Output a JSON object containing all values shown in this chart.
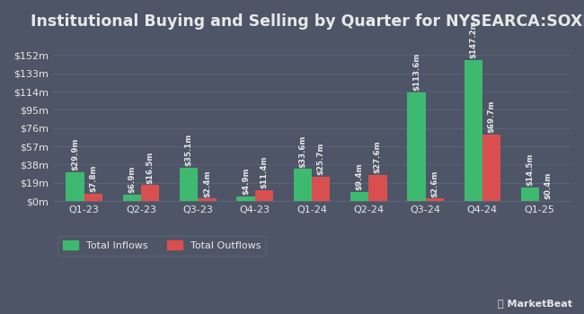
{
  "title": "Institutional Buying and Selling by Quarter for NYSEARCA:SOXL",
  "quarters": [
    "Q1-23",
    "Q2-23",
    "Q3-23",
    "Q4-23",
    "Q1-24",
    "Q2-24",
    "Q3-24",
    "Q4-24",
    "Q1-25"
  ],
  "inflows": [
    29.9,
    6.9,
    35.1,
    4.9,
    33.6,
    9.4,
    113.6,
    147.2,
    14.5
  ],
  "outflows": [
    7.8,
    16.5,
    2.4,
    11.4,
    25.7,
    27.6,
    2.6,
    69.7,
    0.4
  ],
  "inflow_labels": [
    "$29.9m",
    "$6.9m",
    "$35.1m",
    "$4.9m",
    "$33.6m",
    "$9.4m",
    "$113.6m",
    "$147.2m",
    "$14.5m"
  ],
  "outflow_labels": [
    "$7.8m",
    "$16.5m",
    "$2.4m",
    "$11.4m",
    "$25.7m",
    "$27.6m",
    "$2.6m",
    "$69.7m",
    "$0.4m"
  ],
  "inflow_color": "#3dba6f",
  "outflow_color": "#d94f4f",
  "background_color": "#4d5566",
  "text_color": "#e8e8e8",
  "grid_color": "#5d6678",
  "bar_width": 0.32,
  "yticks": [
    0,
    19,
    38,
    57,
    76,
    95,
    114,
    133,
    152
  ],
  "ytick_labels": [
    "$0m",
    "$19m",
    "$38m",
    "$57m",
    "$76m",
    "$95m",
    "$114m",
    "$133m",
    "$152m"
  ],
  "ylim": [
    0,
    172
  ],
  "legend_inflow": "Total Inflows",
  "legend_outflow": "Total Outflows",
  "title_fontsize": 12.5,
  "label_fontsize": 6.2,
  "axis_fontsize": 8,
  "legend_fontsize": 8
}
